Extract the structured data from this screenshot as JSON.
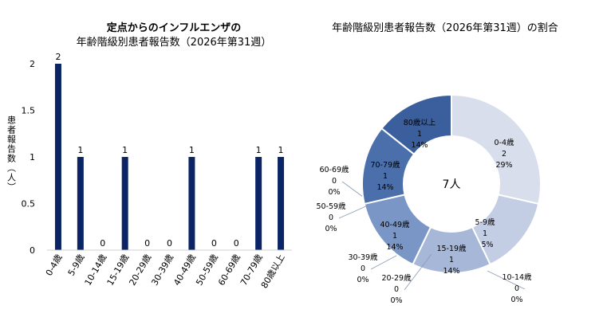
{
  "chart_data": [
    {
      "type": "bar",
      "title": "定点からのインフルエンザの",
      "subtitle": "年齢階級別患者報告数（2026年第31週）",
      "ylabel": "患者報告数（人）",
      "categories": [
        "0-4歳",
        "5-9歳",
        "10-14歳",
        "15-19歳",
        "20-29歳",
        "30-39歳",
        "40-49歳",
        "50-59歳",
        "60-69歳",
        "70-79歳",
        "80歳以上"
      ],
      "values": [
        2,
        1,
        0,
        1,
        0,
        0,
        1,
        0,
        0,
        1,
        1
      ],
      "yticks": [
        "0",
        "0.5",
        "1",
        "1.5",
        "2"
      ],
      "ylim": [
        0,
        2
      ],
      "color": "#0b2466",
      "grid": false
    },
    {
      "type": "pie",
      "title": "年齢階級別患者報告数（2026年第31週）の割合",
      "center_label": "7人",
      "slices": [
        {
          "label": "0-4歳",
          "value": 2,
          "percent": "29%",
          "color": "#d9deec"
        },
        {
          "label": "5-9歳",
          "value": 1,
          "percent": "15%",
          "color": "#c3cde3"
        },
        {
          "label": "10-14歳",
          "value": 0,
          "percent": "0%",
          "color": "#b3c0dc"
        },
        {
          "label": "15-19歳",
          "value": 1,
          "percent": "14%",
          "color": "#a6b7d8"
        },
        {
          "label": "20-29歳",
          "value": 0,
          "percent": "0%",
          "color": "#9aaed3"
        },
        {
          "label": "30-39歳",
          "value": 0,
          "percent": "0%",
          "color": "#8fa6cf"
        },
        {
          "label": "40-49歳",
          "value": 1,
          "percent": "14%",
          "color": "#7a96c6"
        },
        {
          "label": "50-59歳",
          "value": 0,
          "percent": "0%",
          "color": "#6d8cbf"
        },
        {
          "label": "60-69歳",
          "value": 0,
          "percent": "0%",
          "color": "#5f81b8"
        },
        {
          "label": "70-79歳",
          "value": 1,
          "percent": "14%",
          "color": "#4a6faa"
        },
        {
          "label": "80歳以上",
          "value": 1,
          "percent": "14%",
          "color": "#3b5f9d"
        }
      ]
    }
  ]
}
